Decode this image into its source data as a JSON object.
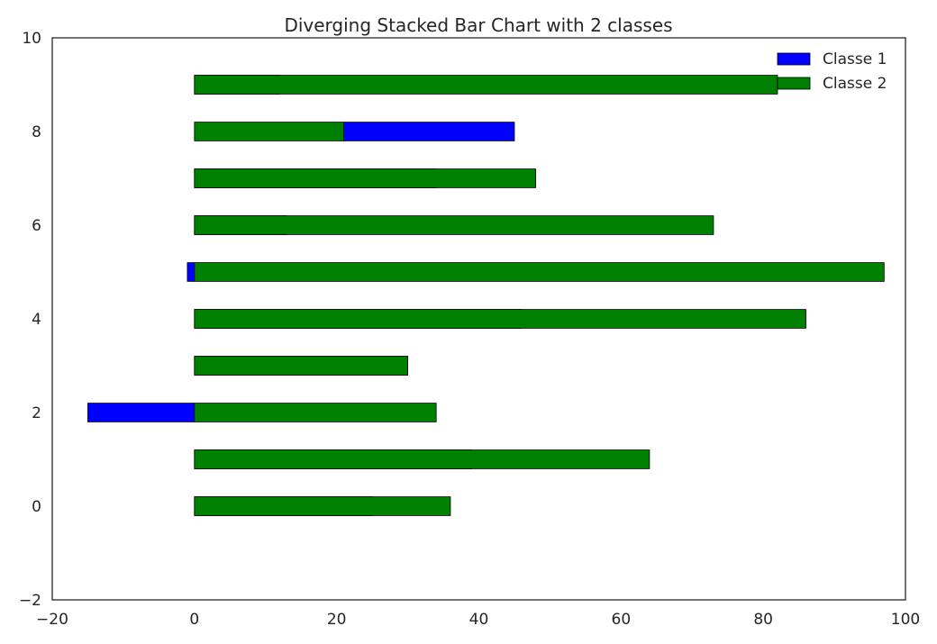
{
  "chart_data": {
    "type": "bar",
    "orientation": "horizontal",
    "stacked": true,
    "diverging": true,
    "title": "Diverging Stacked Bar Chart with 2 classes",
    "xlabel": "",
    "ylabel": "",
    "xlim": [
      -20,
      100
    ],
    "ylim": [
      -2,
      10
    ],
    "xticks": [
      "−20",
      "0",
      "20",
      "40",
      "60",
      "80",
      "100"
    ],
    "yticks": [
      "−2",
      "0",
      "2",
      "4",
      "6",
      "8",
      "10"
    ],
    "grid": false,
    "legend_position": "top-right",
    "categories": [
      0,
      1,
      2,
      3,
      4,
      5,
      6,
      7,
      8,
      9
    ],
    "series": [
      {
        "name": "Classe 1",
        "color": "#0000ff",
        "segments": [
          [
            0,
            25
          ],
          [
            0,
            39
          ],
          [
            -15,
            0
          ],
          [
            0,
            30
          ],
          [
            0,
            46
          ],
          [
            -1,
            0
          ],
          [
            0,
            13
          ],
          [
            0,
            34
          ],
          [
            21,
            45
          ],
          [
            0,
            12
          ]
        ]
      },
      {
        "name": "Classe 2",
        "color": "#008000",
        "segments": [
          [
            0,
            36
          ],
          [
            0,
            64
          ],
          [
            0,
            34
          ],
          [
            0,
            30
          ],
          [
            0,
            86
          ],
          [
            0,
            97
          ],
          [
            0,
            73
          ],
          [
            0,
            48
          ],
          [
            0,
            21
          ],
          [
            0,
            82
          ]
        ]
      }
    ]
  }
}
